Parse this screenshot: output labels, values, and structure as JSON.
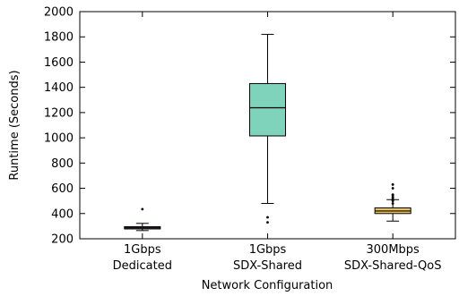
{
  "chart_data": {
    "type": "box",
    "title": "",
    "xlabel": "Network Configuration",
    "ylabel": "Runtime (Seconds)",
    "ylim": [
      200,
      2000
    ],
    "yticks": [
      200,
      400,
      600,
      800,
      1000,
      1200,
      1400,
      1600,
      1800,
      2000
    ],
    "grid": false,
    "legend": "none",
    "categories": [
      {
        "line1": "1Gbps",
        "line2": "Dedicated"
      },
      {
        "line1": "1Gbps",
        "line2": "SDX-Shared"
      },
      {
        "line1": "300Mbps",
        "line2": "SDX-Shared-QoS"
      }
    ],
    "boxes": [
      {
        "whisker_low": 265,
        "q1": 278,
        "median": 287,
        "q3": 296,
        "whisker_high": 322,
        "outliers": [
          435
        ],
        "color": "#c7a0cf"
      },
      {
        "whisker_low": 480,
        "q1": 1015,
        "median": 1238,
        "q3": 1430,
        "whisker_high": 1820,
        "outliers": [
          330,
          370
        ],
        "color": "#7fd3bb"
      },
      {
        "whisker_low": 340,
        "q1": 400,
        "median": 420,
        "q3": 445,
        "whisker_high": 510,
        "outliers": [
          480,
          500,
          510,
          520,
          530,
          545,
          550,
          600,
          630
        ],
        "color": "#e8c15c"
      }
    ]
  }
}
